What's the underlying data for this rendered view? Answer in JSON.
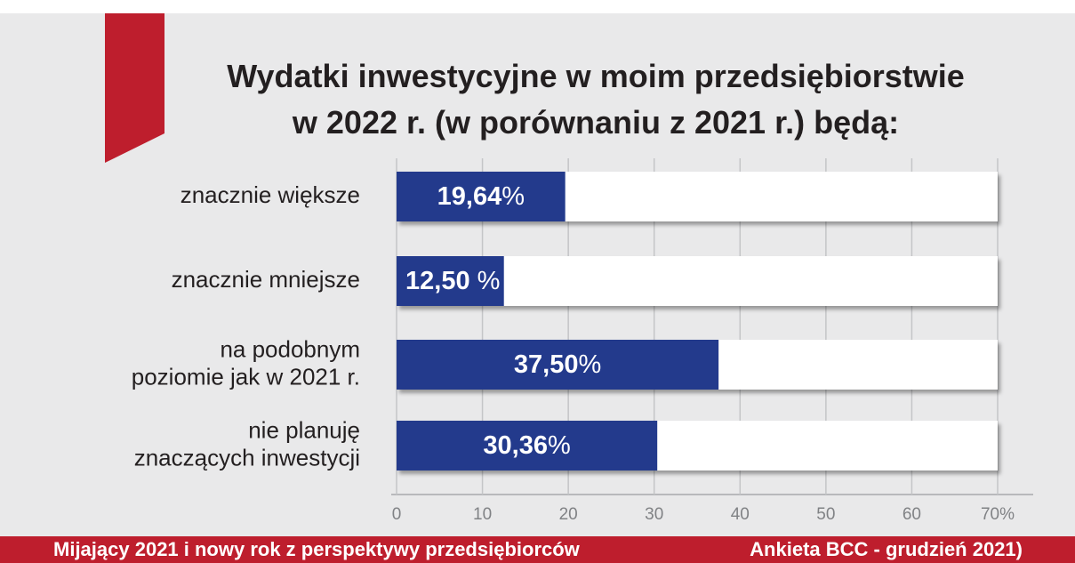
{
  "chart_data": {
    "type": "bar",
    "orientation": "horizontal",
    "title": "Wydatki inwestycyjne w moim przedsiębiorstwie\nw 2022 r. (w porównaniu z 2021 r.) będą:",
    "categories": [
      "znacznie większe",
      "znacznie mniejsze",
      "na podobnym\npoziomie jak w 2021 r.",
      "nie planuję\nznaczących inwestycji"
    ],
    "values": [
      19.64,
      12.5,
      37.5,
      30.36
    ],
    "value_labels": [
      "19,64%",
      "12,50 %",
      "37,50%",
      "30,36%"
    ],
    "color": "#233a8c",
    "xlim": [
      0,
      70
    ],
    "xticks": [
      0,
      10,
      20,
      30,
      40,
      50,
      60,
      {
        "value": 70,
        "label": "70%"
      }
    ],
    "grid": true,
    "footer_left": "Mijający 2021 i nowy rok z perspektywy przedsiębiorców",
    "footer_right": "Ankieta BCC - grudzień 2021)"
  }
}
